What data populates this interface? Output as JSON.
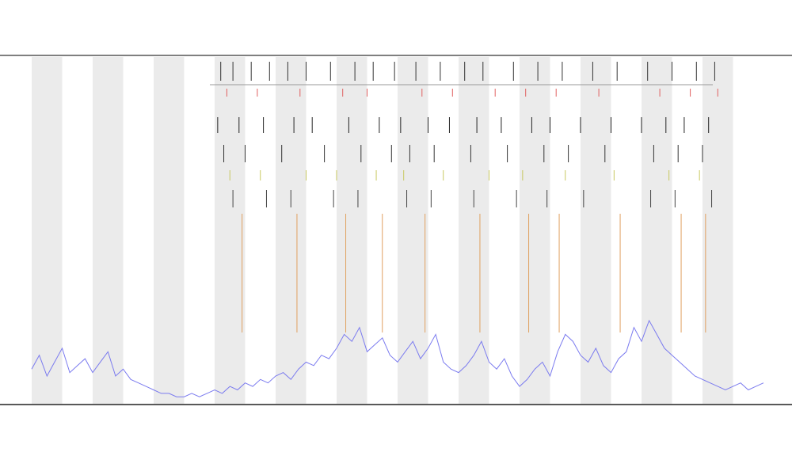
{
  "chart_data": {
    "type": "line",
    "xlim": [
      0,
      12
    ],
    "ylim": [
      0,
      100
    ],
    "shaded_regions": [
      [
        0,
        0.5
      ],
      [
        1,
        1.5
      ],
      [
        2,
        2.5
      ],
      [
        3,
        3.5
      ],
      [
        4,
        4.5
      ],
      [
        5,
        5.5
      ],
      [
        6,
        6.5
      ],
      [
        7,
        7.5
      ],
      [
        8,
        8.5
      ],
      [
        9,
        9.5
      ],
      [
        10,
        10.5
      ],
      [
        11,
        11.5
      ]
    ],
    "shade_color": "#ebebeb",
    "x": [
      0,
      0.125,
      0.25,
      0.375,
      0.5,
      0.625,
      0.75,
      0.875,
      1,
      1.125,
      1.25,
      1.375,
      1.5,
      1.625,
      1.75,
      1.875,
      2,
      2.125,
      2.25,
      2.375,
      2.5,
      2.625,
      2.75,
      2.875,
      3,
      3.125,
      3.25,
      3.375,
      3.5,
      3.625,
      3.75,
      3.875,
      4,
      4.125,
      4.25,
      4.375,
      4.5,
      4.625,
      4.75,
      4.875,
      5,
      5.125,
      5.25,
      5.375,
      5.5,
      5.625,
      5.75,
      5.875,
      6,
      6.125,
      6.25,
      6.375,
      6.5,
      6.625,
      6.75,
      6.875,
      7,
      7.125,
      7.25,
      7.375,
      7.5,
      7.625,
      7.75,
      7.875,
      8,
      8.125,
      8.25,
      8.375,
      8.5,
      8.625,
      8.75,
      8.875,
      9,
      9.125,
      9.25,
      9.375,
      9.5,
      9.625,
      9.75,
      9.875,
      10,
      10.125,
      10.25,
      10.375,
      10.5,
      10.625,
      10.75,
      10.875,
      11,
      11.125,
      11.25,
      11.375,
      11.5,
      11.625,
      11.75,
      11.875,
      12
    ],
    "series": [
      {
        "color": "#7b7bef",
        "values": [
          10,
          14,
          8,
          12,
          16,
          9,
          11,
          13,
          9,
          12,
          15,
          8,
          10,
          7,
          6,
          5,
          4,
          3,
          3,
          2,
          2,
          3,
          2,
          3,
          4,
          3,
          5,
          4,
          6,
          5,
          7,
          6,
          8,
          9,
          7,
          10,
          12,
          11,
          14,
          13,
          16,
          20,
          18,
          22,
          15,
          17,
          19,
          14,
          12,
          15,
          18,
          13,
          16,
          20,
          12,
          10,
          9,
          11,
          14,
          18,
          12,
          10,
          13,
          8,
          5,
          7,
          10,
          12,
          8,
          15,
          20,
          18,
          14,
          12,
          16,
          11,
          9,
          13,
          15,
          22,
          18,
          24,
          20,
          16,
          14,
          12,
          10,
          8,
          7,
          6,
          5,
          4,
          5,
          6,
          4,
          5,
          6
        ]
      }
    ],
    "events": [
      {
        "color": "#333333",
        "x": [
          3.1,
          3.3,
          3.6,
          3.9,
          4.2,
          4.5,
          4.9,
          5.3,
          5.6,
          5.95,
          6.3,
          6.7,
          7.1,
          7.4,
          7.9,
          8.3,
          8.7,
          9.2,
          9.6,
          10.1,
          10.5,
          10.9,
          11.2
        ]
      },
      {
        "color": "#e06060",
        "x": [
          3.2,
          3.7,
          4.4,
          5.1,
          5.5,
          6.4,
          6.9,
          7.6,
          8.1,
          8.6,
          9.3,
          10.3,
          10.8,
          11.25
        ]
      },
      {
        "color": "#222222",
        "x": [
          3.05,
          3.4,
          3.8,
          4.3,
          4.6,
          5.2,
          5.7,
          6.05,
          6.5,
          6.85,
          7.3,
          7.7,
          8.2,
          8.5,
          9.0,
          9.5,
          10.0,
          10.4,
          10.7,
          11.1
        ]
      },
      {
        "color": "#333333",
        "x": [
          3.15,
          3.5,
          4.1,
          4.8,
          5.4,
          5.9,
          6.2,
          6.6,
          7.2,
          7.8,
          8.4,
          8.8,
          9.4,
          10.2,
          10.6,
          11.0
        ]
      },
      {
        "color": "#c8c860",
        "x": [
          3.25,
          3.75,
          4.5,
          5.0,
          5.65,
          6.1,
          6.75,
          7.5,
          8.05,
          8.75,
          9.55,
          10.45,
          10.95
        ]
      },
      {
        "color": "#444444",
        "x": [
          3.3,
          3.85,
          4.25,
          4.95,
          5.35,
          6.15,
          6.55,
          7.25,
          7.95,
          8.45,
          9.05,
          10.15,
          10.55,
          11.15
        ]
      },
      {
        "color": "#e0a060",
        "x": [
          3.45,
          4.35,
          5.15,
          5.75,
          6.45,
          7.35,
          8.15,
          8.65,
          9.65,
          10.65,
          11.05
        ]
      }
    ]
  }
}
